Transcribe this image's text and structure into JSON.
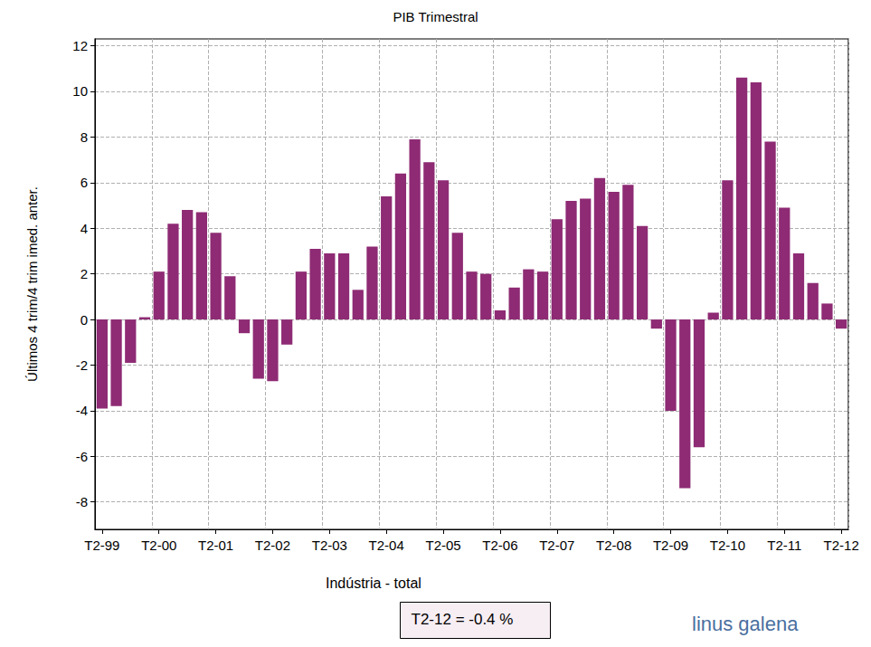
{
  "chart_data": {
    "type": "bar",
    "title": "PIB Trimestral",
    "y_label": "Últimos 4 trim/4 trim imed. anter.",
    "x_label": "Indústria - total",
    "annotation": "T2-12 = -0.4 %",
    "logo": "linus galena",
    "categories": [
      "T2-99",
      null,
      null,
      null,
      "T2-00",
      null,
      null,
      null,
      "T2-01",
      null,
      null,
      null,
      "T2-02",
      null,
      null,
      null,
      "T2-03",
      null,
      null,
      null,
      "T2-04",
      null,
      null,
      null,
      "T2-05",
      null,
      null,
      null,
      "T2-06",
      null,
      null,
      null,
      "T2-07",
      null,
      null,
      null,
      "T2-08",
      null,
      null,
      null,
      "T2-09",
      null,
      null,
      null,
      "T2-10",
      null,
      null,
      null,
      "T2-11",
      null,
      null,
      null,
      "T2-12"
    ],
    "values": [
      -3.9,
      -3.8,
      -1.9,
      0.1,
      2.1,
      4.2,
      4.8,
      4.7,
      3.8,
      1.9,
      -0.6,
      -2.6,
      -2.7,
      -1.1,
      2.1,
      3.1,
      2.9,
      2.9,
      1.3,
      3.2,
      5.4,
      6.4,
      7.9,
      6.9,
      6.1,
      3.8,
      2.1,
      2.0,
      0.4,
      1.4,
      2.2,
      2.1,
      4.4,
      5.2,
      5.3,
      6.2,
      5.6,
      5.9,
      4.1,
      -0.4,
      -4.0,
      -7.4,
      -5.6,
      0.3,
      6.1,
      10.6,
      10.4,
      7.8,
      4.9,
      2.9,
      1.6,
      0.7,
      -0.4
    ],
    "color": "#8e2b74",
    "ylim": [
      -9.2,
      12.3
    ],
    "yticks": [
      -8,
      -6,
      -4,
      -2,
      0,
      2,
      4,
      6,
      8,
      10,
      12
    ],
    "grid": true
  }
}
